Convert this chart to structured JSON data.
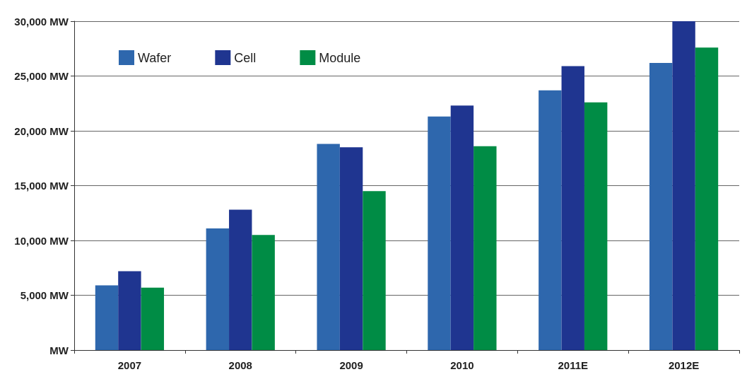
{
  "chart_data": {
    "type": "bar",
    "categories": [
      "2007",
      "2008",
      "2009",
      "2010",
      "2011E",
      "2012E"
    ],
    "series": [
      {
        "name": "Wafer",
        "color": "#2e67ad",
        "values": [
          5900,
          11100,
          18800,
          21300,
          23700,
          26200
        ]
      },
      {
        "name": "Cell",
        "color": "#1f3590",
        "values": [
          7200,
          12800,
          18500,
          22300,
          25900,
          30000
        ]
      },
      {
        "name": "Module",
        "color": "#008c45",
        "values": [
          5700,
          10500,
          14500,
          18600,
          22600,
          27600
        ]
      }
    ],
    "ylim": [
      0,
      30000
    ],
    "yticks": [
      {
        "value": 0,
        "label": "MW"
      },
      {
        "value": 5000,
        "label": "5,000 MW"
      },
      {
        "value": 10000,
        "label": "10,000 MW"
      },
      {
        "value": 15000,
        "label": "15,000 MW"
      },
      {
        "value": 20000,
        "label": "20,000 MW"
      },
      {
        "value": 25000,
        "label": "25,000 MW"
      },
      {
        "value": 30000,
        "label": "30,000 MW"
      }
    ],
    "grid": "y",
    "legend": "top left"
  }
}
